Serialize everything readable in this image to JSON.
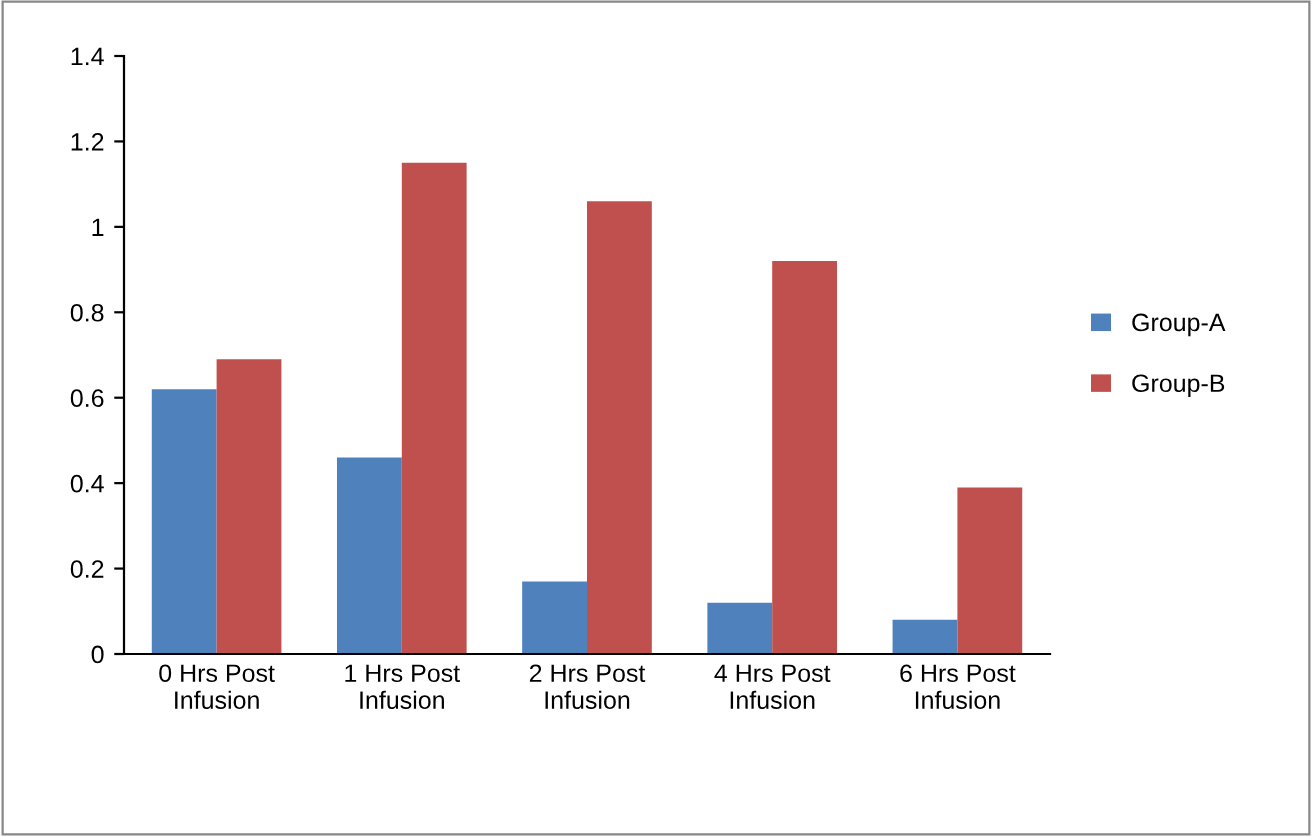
{
  "chart_data": {
    "type": "bar",
    "categories": [
      "0 Hrs Post\nInfusion",
      "1 Hrs Post\nInfusion",
      "2 Hrs Post\nInfusion",
      "4 Hrs Post\nInfusion",
      "6 Hrs Post\nInfusion"
    ],
    "series": [
      {
        "name": "Group-A",
        "color": "#4f81bd",
        "values": [
          0.62,
          0.46,
          0.17,
          0.12,
          0.08
        ]
      },
      {
        "name": "Group-B",
        "color": "#c0504d",
        "values": [
          0.69,
          1.15,
          1.06,
          0.92,
          0.39
        ]
      }
    ],
    "ylim": [
      0,
      1.4
    ],
    "yticks": [
      0,
      0.2,
      0.4,
      0.6,
      0.8,
      1,
      1.2,
      1.4
    ],
    "grid": false,
    "legend": "right"
  }
}
